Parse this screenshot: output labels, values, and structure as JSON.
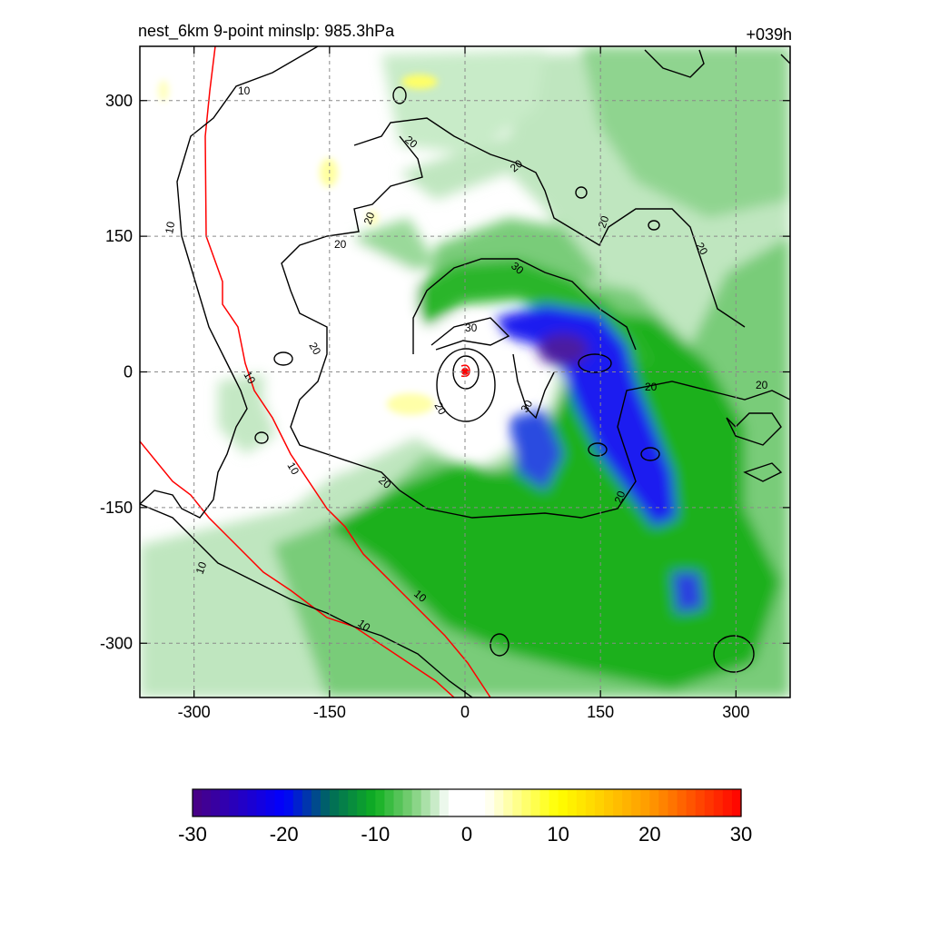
{
  "chart_data": {
    "type": "heatmap",
    "title_left": "nest_6km  9-point minslp: 985.3hPa",
    "title_right": "+039h",
    "x_range": [
      -360,
      360
    ],
    "y_range": [
      -360,
      360
    ],
    "x_ticks": [
      -300,
      -150,
      0,
      150,
      300
    ],
    "y_ticks": [
      300,
      150,
      0,
      -150,
      -300
    ],
    "grid": true,
    "colorbar": {
      "range": [
        -30,
        30
      ],
      "ticks": [
        -30,
        -20,
        -10,
        0,
        10,
        20,
        30
      ],
      "stops": [
        {
          "v": -30,
          "c": "#4b0082"
        },
        {
          "v": -20,
          "c": "#0000ff"
        },
        {
          "v": -15,
          "c": "#006a5a"
        },
        {
          "v": -10,
          "c": "#10b020"
        },
        {
          "v": -6,
          "c": "#7ccf78"
        },
        {
          "v": -3,
          "c": "#d8f0d8"
        },
        {
          "v": -2,
          "c": "#ffffff"
        },
        {
          "v": 2,
          "c": "#ffffff"
        },
        {
          "v": 5,
          "c": "#ffff9a"
        },
        {
          "v": 10,
          "c": "#ffff00"
        },
        {
          "v": 20,
          "c": "#ff9a00"
        },
        {
          "v": 30,
          "c": "#ff0000"
        }
      ]
    },
    "contour_levels": [
      10,
      20,
      30
    ],
    "center_marker": [
      0,
      0
    ]
  }
}
